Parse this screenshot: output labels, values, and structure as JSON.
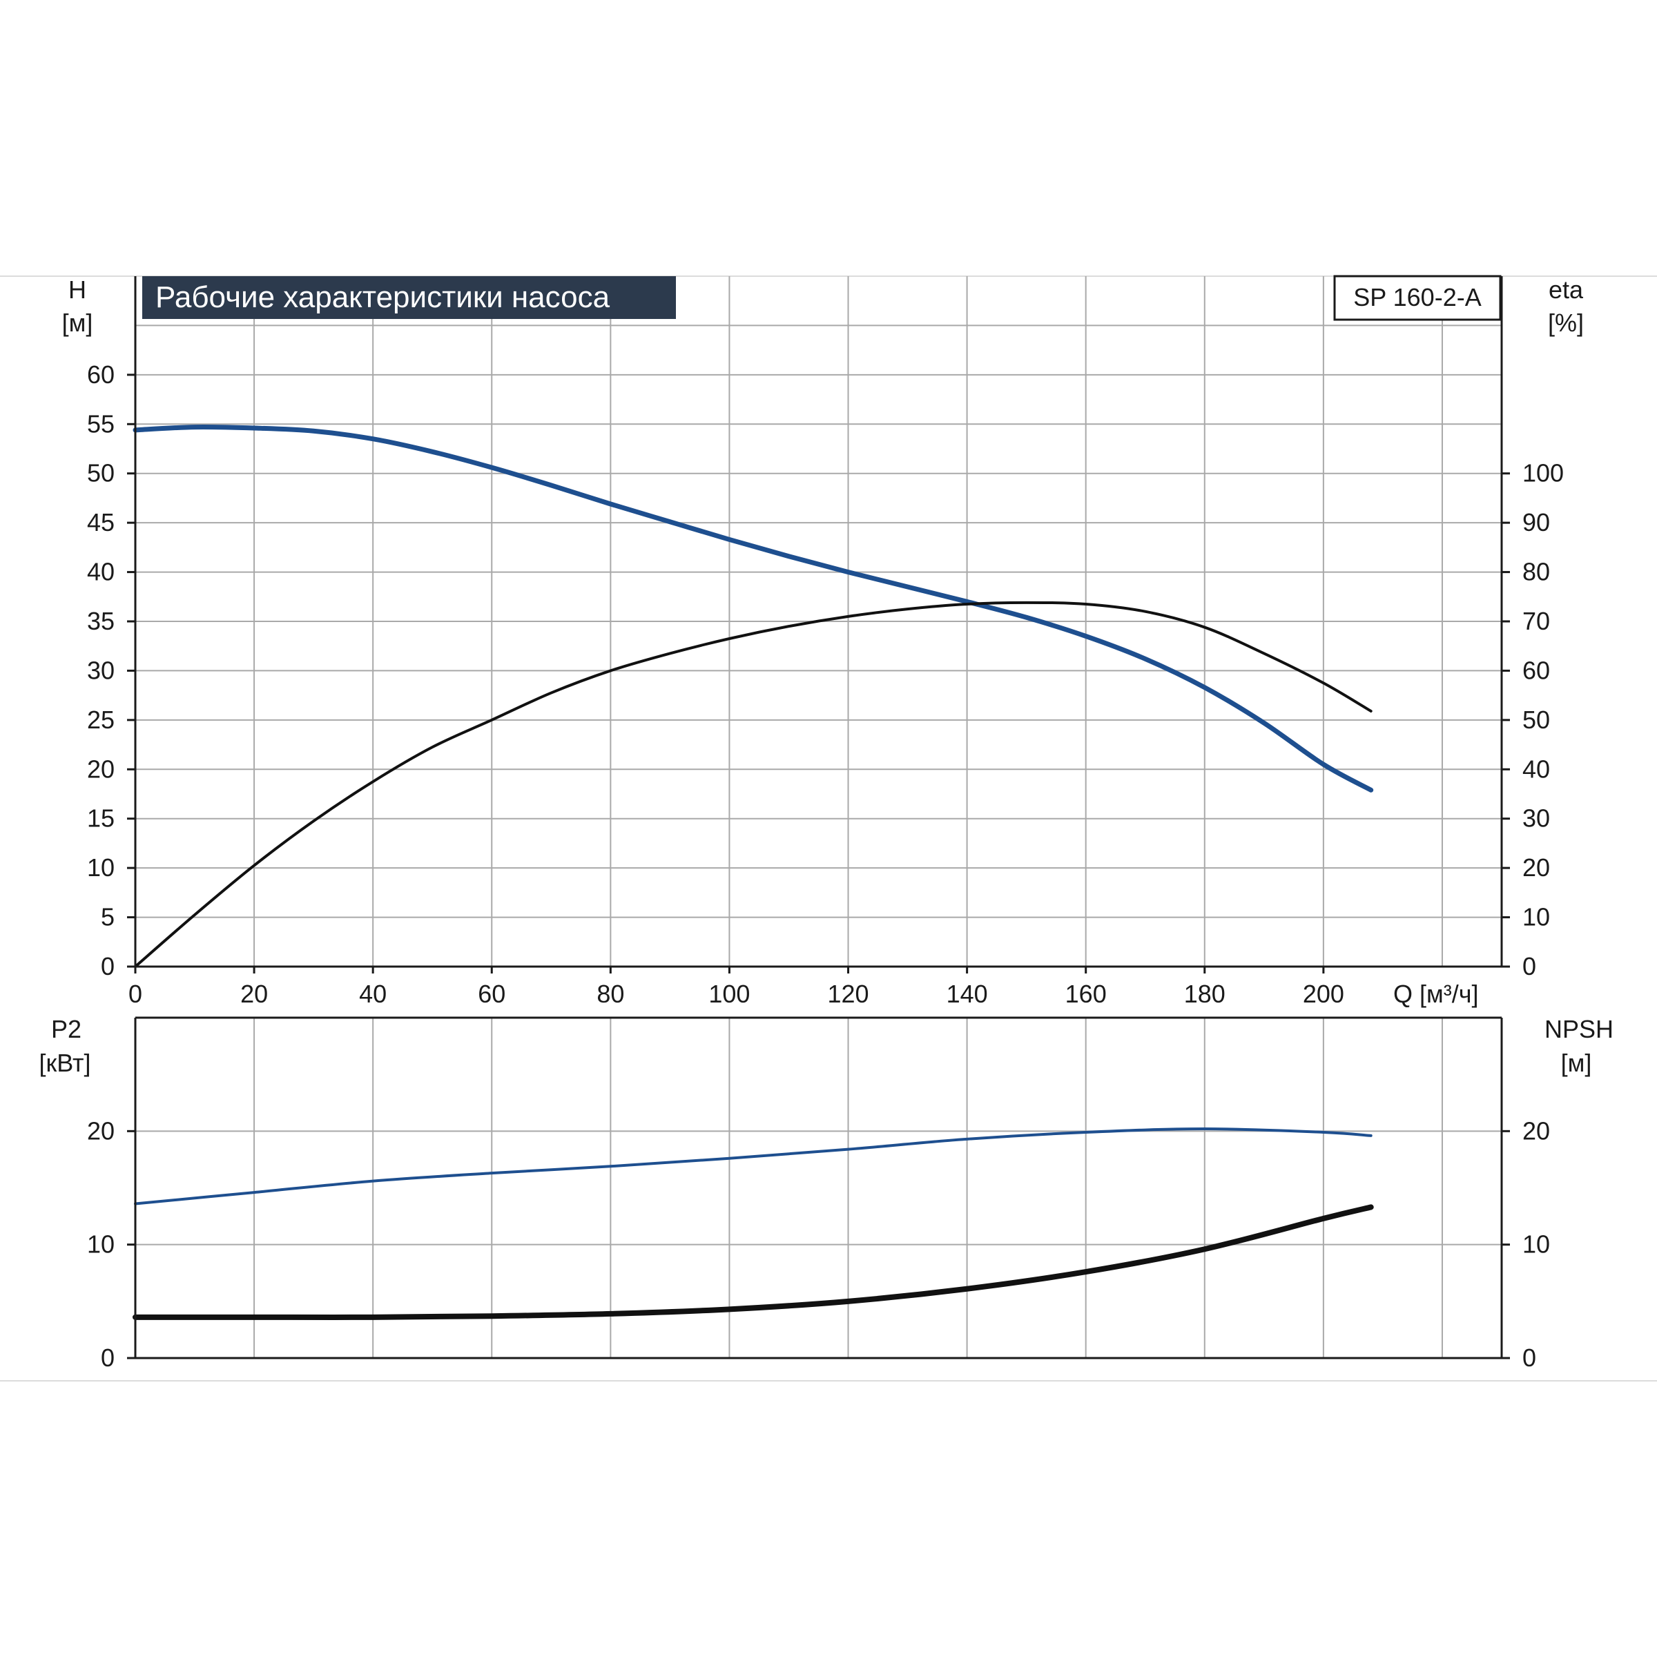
{
  "header": {
    "title": "Рабочие характеристики насоса",
    "model": "SP 160-2-A"
  },
  "colors": {
    "blue_curve": "#1e4f8f",
    "black_curve": "#111111",
    "grid": "#a9a9a9",
    "axis": "#1a1a1a",
    "title_bg": "#2c3a4d",
    "title_text": "#ffffff"
  },
  "chart_data": [
    {
      "type": "line",
      "panel": "top",
      "xlabel": "Q [м³/ч]",
      "x_ticks": [
        0,
        20,
        40,
        60,
        80,
        100,
        120,
        140,
        160,
        180,
        200
      ],
      "xlim": [
        0,
        230
      ],
      "left_axis": {
        "label_line1": "H",
        "label_line2": "[м]",
        "ylim": [
          0,
          70
        ],
        "ticks": [
          0,
          5,
          10,
          15,
          20,
          25,
          30,
          35,
          40,
          45,
          50,
          55,
          60
        ]
      },
      "right_axis": {
        "label_line1": "eta",
        "label_line2": "[%]",
        "ylim": [
          0,
          140
        ],
        "ticks": [
          0,
          10,
          20,
          30,
          40,
          50,
          60,
          70,
          80,
          90,
          100
        ]
      },
      "grid": true,
      "series": [
        {
          "axis": "left",
          "color": "blue",
          "x": [
            0,
            10,
            20,
            30,
            40,
            50,
            60,
            70,
            80,
            90,
            100,
            110,
            120,
            130,
            140,
            150,
            160,
            170,
            180,
            190,
            200,
            208
          ],
          "y": [
            54.4,
            54.7,
            54.6,
            54.3,
            53.5,
            52.2,
            50.6,
            48.8,
            46.9,
            45.1,
            43.3,
            41.6,
            40.0,
            38.5,
            37.0,
            35.4,
            33.5,
            31.2,
            28.3,
            24.7,
            20.5,
            17.9
          ]
        },
        {
          "axis": "right",
          "color": "black",
          "x": [
            0,
            10,
            20,
            30,
            40,
            50,
            60,
            70,
            80,
            90,
            100,
            110,
            120,
            130,
            140,
            150,
            160,
            170,
            180,
            190,
            200,
            208
          ],
          "y": [
            0,
            10.5,
            20.5,
            29.5,
            37.5,
            44.5,
            50.0,
            55.5,
            60.0,
            63.5,
            66.5,
            69.0,
            71.0,
            72.5,
            73.5,
            73.8,
            73.5,
            72.0,
            68.8,
            63.5,
            57.5,
            51.8
          ]
        }
      ]
    },
    {
      "type": "line",
      "panel": "bottom",
      "xlim": [
        0,
        230
      ],
      "left_axis": {
        "label_line1": "P2",
        "label_line2": "[кВт]",
        "ylim": [
          0,
          30
        ],
        "ticks": [
          0,
          10,
          20
        ]
      },
      "right_axis": {
        "label_line1": "NPSH",
        "label_line2": "[м]",
        "ylim": [
          0,
          30
        ],
        "ticks": [
          0,
          10,
          20
        ]
      },
      "grid": true,
      "series": [
        {
          "axis": "left",
          "color": "blue",
          "x": [
            0,
            20,
            40,
            60,
            80,
            100,
            120,
            140,
            160,
            180,
            200,
            208
          ],
          "y": [
            13.6,
            14.6,
            15.6,
            16.3,
            16.9,
            17.6,
            18.4,
            19.3,
            19.9,
            20.2,
            19.9,
            19.6
          ]
        },
        {
          "axis": "right",
          "color": "black",
          "x": [
            0,
            20,
            40,
            60,
            80,
            100,
            120,
            140,
            160,
            180,
            200,
            208
          ],
          "y": [
            3.6,
            3.6,
            3.6,
            3.7,
            3.9,
            4.3,
            5.0,
            6.1,
            7.6,
            9.6,
            12.3,
            13.3
          ]
        }
      ]
    }
  ]
}
